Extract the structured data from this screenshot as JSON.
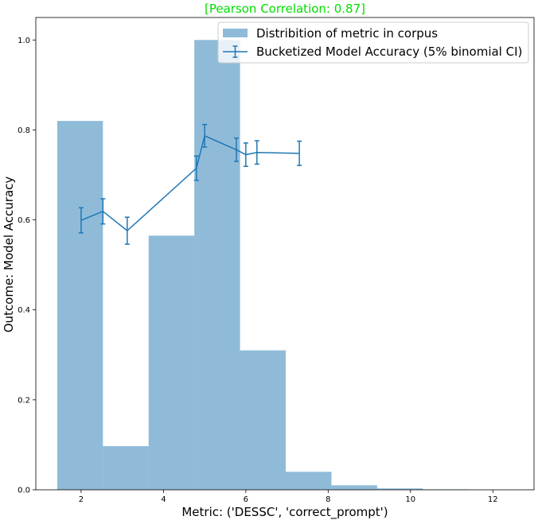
{
  "chart_data": {
    "type": "bar+line",
    "title": "[Pearson Correlation: 0.87]",
    "title_color": "#00dd00",
    "xlabel": "Metric: ('DESSC', 'correct_prompt')",
    "ylabel": "Outcome: Model Accuracy",
    "xlim": [
      0.9,
      13.0
    ],
    "ylim": [
      0.0,
      1.05
    ],
    "xticks": [
      2,
      4,
      6,
      8,
      10,
      12
    ],
    "yticks": [
      0.0,
      0.2,
      0.4,
      0.6,
      0.8,
      1.0
    ],
    "xtick_labels": [
      "2",
      "4",
      "6",
      "8",
      "10",
      "12"
    ],
    "ytick_labels": [
      "0.0",
      "0.2",
      "0.4",
      "0.6",
      "0.8",
      "1.0"
    ],
    "legend_position": "upper-right",
    "histogram": {
      "name": "Distribition of metric in corpus",
      "color": "#1f77b4",
      "alpha": 0.5,
      "bins": [
        {
          "x0": 1.42,
          "x1": 2.53,
          "value": 0.82
        },
        {
          "x0": 2.53,
          "x1": 3.64,
          "value": 0.097
        },
        {
          "x0": 3.64,
          "x1": 4.75,
          "value": 0.565
        },
        {
          "x0": 4.75,
          "x1": 5.86,
          "value": 1.0
        },
        {
          "x0": 5.86,
          "x1": 6.97,
          "value": 0.31
        },
        {
          "x0": 6.97,
          "x1": 8.08,
          "value": 0.04
        },
        {
          "x0": 8.08,
          "x1": 9.19,
          "value": 0.01
        },
        {
          "x0": 9.19,
          "x1": 10.3,
          "value": 0.003
        },
        {
          "x0": 10.3,
          "x1": 11.41,
          "value": 0.001
        },
        {
          "x0": 11.41,
          "x1": 12.52,
          "value": 0.0
        }
      ]
    },
    "series": [
      {
        "name": "Bucketized Model Accuracy (5% binomial CI)",
        "color": "#1f77b4",
        "x": [
          2.0,
          2.53,
          3.12,
          4.8,
          5.0,
          5.77,
          6.0,
          6.27,
          7.3
        ],
        "y": [
          0.599,
          0.619,
          0.576,
          0.715,
          0.787,
          0.756,
          0.745,
          0.75,
          0.748
        ],
        "err": [
          0.028,
          0.028,
          0.03,
          0.027,
          0.025,
          0.026,
          0.026,
          0.026,
          0.027
        ]
      }
    ]
  }
}
